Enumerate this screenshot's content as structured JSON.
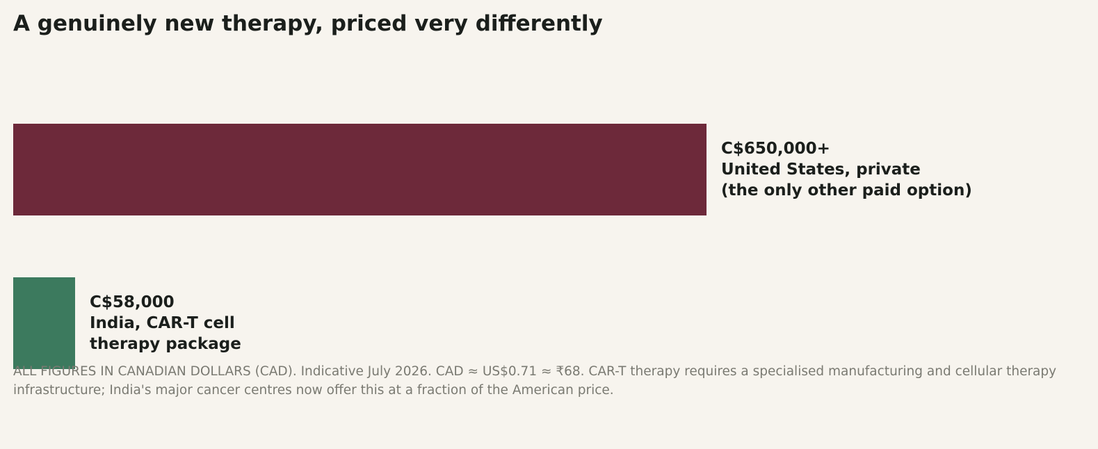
{
  "title": "A genuinely new therapy, priced very differently",
  "footnote": "ALL FIGURES IN CANADIAN DOLLARS (CAD). Indicative July 2026. CAD ≈ US$0.71 ≈ ₹68. CAR-T therapy requires a specialised manufacturing and cellular therapy infrastructure; India's major cancer centres now offer this at a fraction of the American price.",
  "chart_data": {
    "type": "bar",
    "orientation": "horizontal",
    "title": "A genuinely new therapy, priced very differently",
    "xlim": [
      0,
      650000
    ],
    "grid": false,
    "bars": [
      {
        "value": 650000,
        "value_label": "C$650,000+",
        "label_line1": "United States, private",
        "label_line2": "(the only other paid option)",
        "color": "#6d293a"
      },
      {
        "value": 58000,
        "value_label": "C$58,000",
        "label_line1": "India, CAR-T cell",
        "label_line2": "therapy package",
        "color": "#3c7a5e"
      }
    ]
  }
}
